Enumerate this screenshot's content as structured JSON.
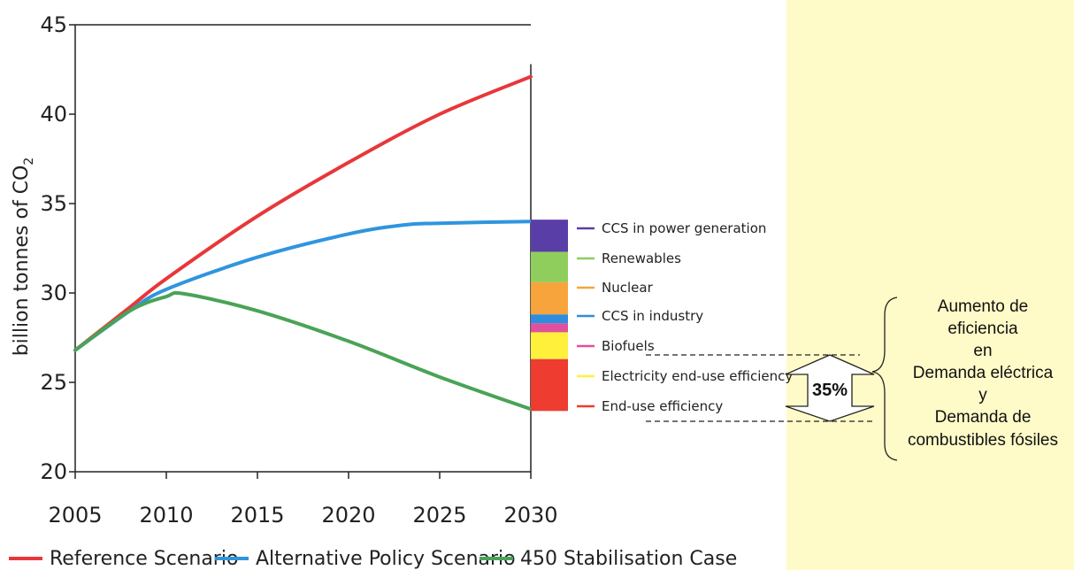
{
  "chart_data": {
    "type": "line",
    "ylabel": "billion tonnes of CO2",
    "xlim": [
      2005,
      2030
    ],
    "ylim": [
      20,
      45
    ],
    "xticks": [
      2005,
      2010,
      2015,
      2020,
      2025,
      2030
    ],
    "yticks": [
      20,
      25,
      30,
      35,
      40,
      45
    ],
    "series": [
      {
        "name": "Reference Scenario",
        "color": "#e8373a",
        "x": [
          2005,
          2008,
          2010,
          2015,
          2020,
          2025,
          2030
        ],
        "y": [
          26.8,
          29.2,
          30.8,
          34.3,
          37.3,
          40.0,
          42.1
        ]
      },
      {
        "name": "Alternative Policy Scenario",
        "color": "#2f95de",
        "x": [
          2005,
          2008,
          2010,
          2015,
          2020,
          2023,
          2025,
          2030
        ],
        "y": [
          26.8,
          29.0,
          30.2,
          32.0,
          33.3,
          33.8,
          33.9,
          34.0
        ]
      },
      {
        "name": "450 Stabilisation Case",
        "color": "#4aa356",
        "x": [
          2005,
          2008,
          2010,
          2011,
          2015,
          2020,
          2025,
          2030
        ],
        "y": [
          26.8,
          29.0,
          29.8,
          29.95,
          29.0,
          27.3,
          25.3,
          23.5
        ]
      }
    ],
    "wedges": [
      {
        "label": "CCS in power generation",
        "color": "#5a3ea8",
        "from": 32.3,
        "to": 34.1
      },
      {
        "label": "Renewables",
        "color": "#8fce5c",
        "from": 30.6,
        "to": 32.3
      },
      {
        "label": "Nuclear",
        "color": "#f8a43c",
        "from": 28.8,
        "to": 30.6
      },
      {
        "label": "CCS in industry",
        "color": "#2f8ddc",
        "from": 28.3,
        "to": 28.8
      },
      {
        "label": "Biofuels",
        "color": "#e0509c",
        "from": 27.8,
        "to": 28.3
      },
      {
        "label": "Electricity end-use efficiency",
        "color": "#fff03c",
        "from": 26.3,
        "to": 27.8
      },
      {
        "label": "End-use efficiency",
        "color": "#ee3c30",
        "from": 23.4,
        "to": 26.3
      }
    ],
    "annotation": {
      "percent": "35%",
      "lines": [
        "Aumento de",
        "eficiencia",
        "en",
        "Demanda eléctrica",
        "y",
        "Demanda de",
        "combustibles fósiles"
      ]
    }
  }
}
